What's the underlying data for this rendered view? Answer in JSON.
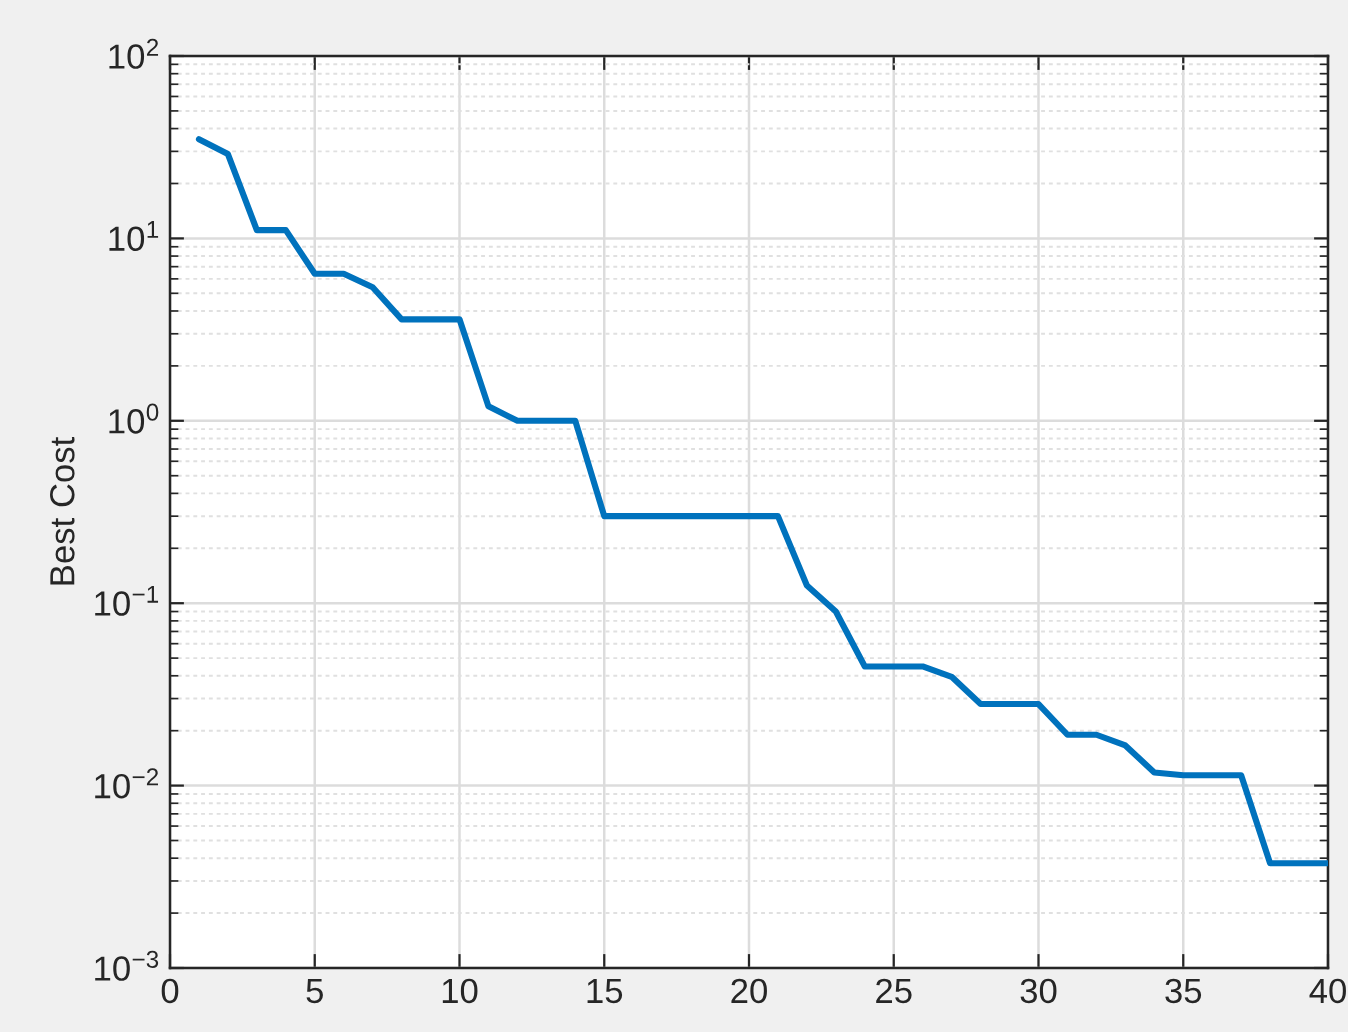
{
  "chart_data": {
    "type": "line",
    "ylabel": "Best Cost",
    "x": [
      1,
      2,
      3,
      4,
      5,
      6,
      7,
      8,
      9,
      10,
      11,
      12,
      13,
      14,
      15,
      16,
      17,
      18,
      19,
      20,
      21,
      22,
      23,
      24,
      25,
      26,
      27,
      28,
      29,
      30,
      31,
      32,
      33,
      34,
      35,
      36,
      37,
      38,
      39,
      40
    ],
    "series": [
      {
        "color": "#0072bd",
        "values": [
          35,
          29,
          11.1,
          11.1,
          6.4,
          6.4,
          5.4,
          3.6,
          3.6,
          3.6,
          1.2,
          1.0,
          1.0,
          1.0,
          0.3,
          0.3,
          0.3,
          0.3,
          0.3,
          0.3,
          0.3,
          0.125,
          0.09,
          0.045,
          0.045,
          0.045,
          0.0395,
          0.028,
          0.028,
          0.028,
          0.019,
          0.019,
          0.0166,
          0.0118,
          0.0114,
          0.0114,
          0.0114,
          0.00375,
          0.00375,
          0.00375
        ]
      }
    ],
    "xlim": [
      0,
      40
    ],
    "xticks": [
      0,
      5,
      10,
      15,
      20,
      25,
      30,
      35,
      40
    ],
    "ylim": [
      0.001,
      100
    ],
    "yticks": [
      {
        "value": 0.001,
        "label": "10$^{−3}$"
      },
      {
        "value": 0.01,
        "label": "10$^{−2}$"
      },
      {
        "value": 0.1,
        "label": "10$^{−1}$"
      },
      {
        "value": 1,
        "label": "10$^{0}$"
      },
      {
        "value": 10,
        "label": "10$^{1}$"
      },
      {
        "value": 100,
        "label": "10$^{2}$"
      }
    ],
    "log": true,
    "grid": true,
    "line_style": "solid"
  }
}
